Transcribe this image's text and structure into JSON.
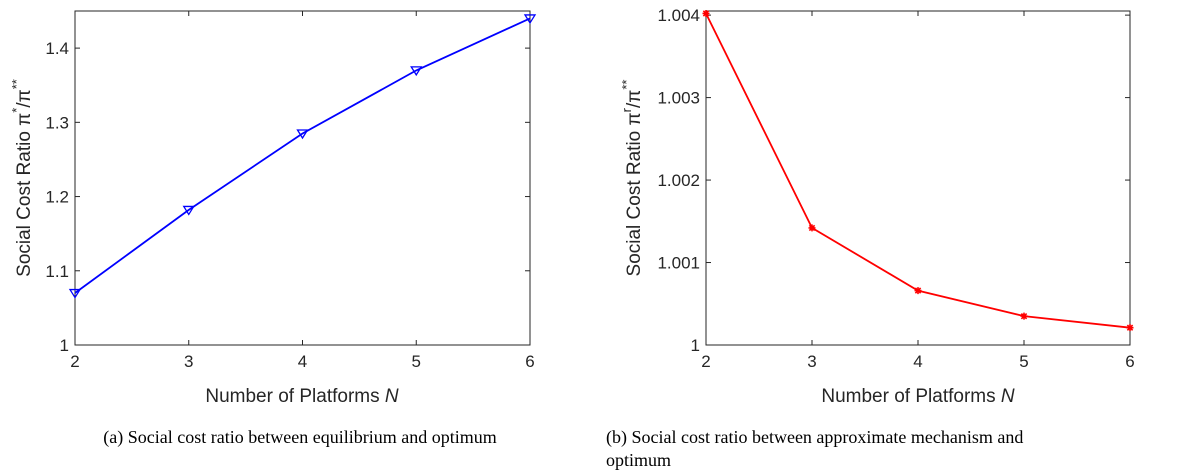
{
  "captions": {
    "a": "(a) Social cost ratio between equilibrium and optimum",
    "b_line1": "(b) Social cost ratio between approximate mechanism and",
    "b_line2": "optimum"
  },
  "chart_data": [
    {
      "type": "line",
      "xlabel_text": "Number of Platforms ",
      "xlabel_var": "N",
      "ylabel_text": "Social Cost Ratio ",
      "ylabel_num_base": "π",
      "ylabel_num_sup": "*",
      "ylabel_den_base": "π",
      "ylabel_den_sup": "**",
      "xlim": [
        2,
        6
      ],
      "ylim": [
        1,
        1.45
      ],
      "xticks": [
        "2",
        "3",
        "4",
        "5",
        "6"
      ],
      "yticks": [
        1,
        1.1,
        1.2,
        1.3,
        1.4
      ],
      "ytick_labels": [
        "1",
        "1.1",
        "1.2",
        "1.3",
        "1.4"
      ],
      "grid": false,
      "series": [
        {
          "color": "#0000ff",
          "marker": "triangle-down",
          "x": [
            2,
            3,
            4,
            5,
            6
          ],
          "values": [
            1.07,
            1.182,
            1.285,
            1.37,
            1.44
          ]
        }
      ]
    },
    {
      "type": "line",
      "xlabel_text": "Number of Platforms ",
      "xlabel_var": "N",
      "ylabel_text": "Social Cost Ratio ",
      "ylabel_num_base": "π",
      "ylabel_num_sup": "r",
      "ylabel_den_base": "π",
      "ylabel_den_sup": "**",
      "xlim": [
        2,
        6
      ],
      "ylim": [
        1,
        1.00405
      ],
      "xticks": [
        "2",
        "3",
        "4",
        "5",
        "6"
      ],
      "yticks": [
        1,
        1.001,
        1.002,
        1.003,
        1.004
      ],
      "ytick_labels": [
        "1",
        "1.001",
        "1.002",
        "1.003",
        "1.004"
      ],
      "grid": false,
      "series": [
        {
          "color": "#ff0000",
          "marker": "asterisk",
          "x": [
            2,
            3,
            4,
            5,
            6
          ],
          "values": [
            1.00402,
            1.00142,
            1.00066,
            1.00035,
            1.00021
          ]
        }
      ]
    }
  ]
}
